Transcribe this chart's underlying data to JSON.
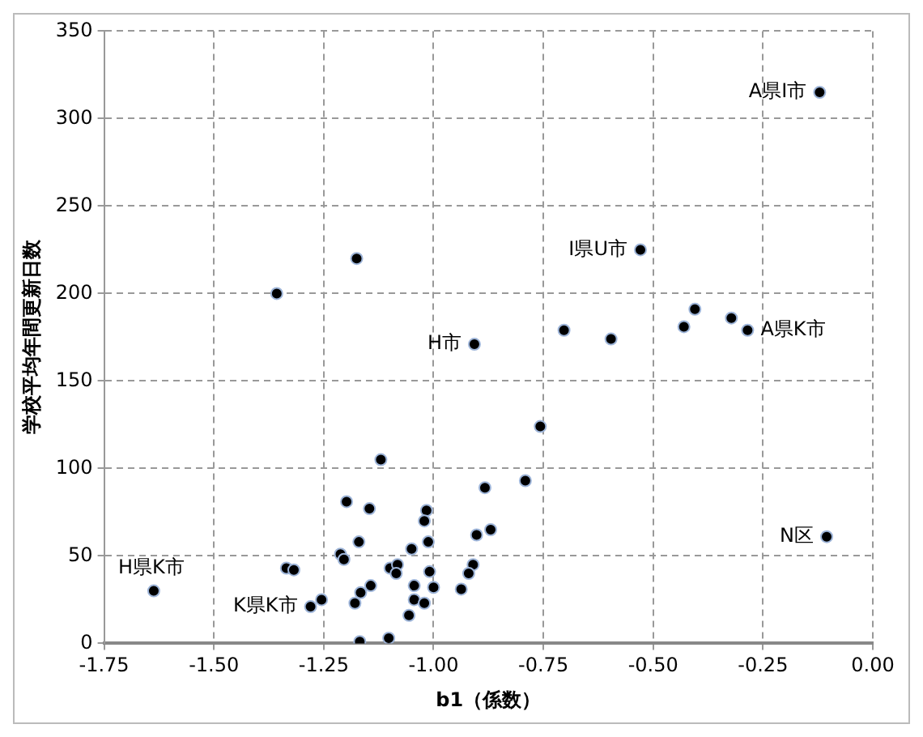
{
  "chart_data": {
    "type": "scatter",
    "xlabel": "b1（係数）",
    "ylabel": "学校平均年間更新日数",
    "x": [
      -1.357,
      -0.907,
      -0.703,
      -0.757,
      -1.12,
      -0.791,
      -0.883,
      -1.198,
      -1.146,
      -1.016,
      -1.021,
      -0.87,
      -0.902,
      -1.17,
      -1.012,
      -1.05,
      -1.212,
      -1.204,
      -0.91,
      -0.92,
      -1.335,
      -1.318,
      -1.099,
      -1.082,
      -1.085,
      -1.009,
      -1.637,
      -1.143,
      -1.166,
      -1.044,
      -1.0,
      -0.937,
      -1.255,
      -1.28,
      -1.179,
      -1.044,
      -1.021,
      -1.056,
      -1.102,
      -1.168,
      -1.175,
      -0.121,
      -0.529,
      -0.596,
      -0.43,
      -0.405,
      -0.322,
      -0.285,
      -0.105
    ],
    "series": [
      {
        "color": "#000000",
        "values": [
          200,
          171,
          179,
          124,
          105,
          93,
          89,
          81,
          77,
          76,
          70,
          65,
          62,
          58,
          58,
          54,
          51,
          48,
          45,
          40,
          43,
          42,
          43,
          45,
          40,
          41,
          30,
          33,
          29,
          33,
          32,
          31,
          25,
          21,
          23,
          25,
          23,
          16,
          3,
          1,
          220,
          315,
          225,
          174,
          181,
          191,
          186,
          179,
          61
        ]
      }
    ],
    "xlim": [
      -1.75,
      0
    ],
    "xticks": [
      {
        "value": -1.75,
        "label": "-1.75"
      },
      {
        "value": -1.5,
        "label": "-1.50"
      },
      {
        "value": -1.25,
        "label": "-1.25"
      },
      {
        "value": -1,
        "label": "-1.00"
      },
      {
        "value": -0.75,
        "label": "-0.75"
      },
      {
        "value": -0.5,
        "label": "-0.50"
      },
      {
        "value": -0.25,
        "label": "-0.25"
      },
      {
        "value": 0,
        "label": "0.00"
      }
    ],
    "ylim": [
      0,
      350
    ],
    "yticks": [
      0,
      50,
      100,
      150,
      200,
      250,
      300,
      350
    ],
    "grid": true,
    "marker": "circle",
    "legend": false,
    "annotations": [
      {
        "text": "A県I市",
        "x": -0.121,
        "y": 315
      },
      {
        "text": "I県U市",
        "x": -0.529,
        "y": 225
      },
      {
        "text": "H市",
        "x": -0.907,
        "y": 171
      },
      {
        "text": "A県K市",
        "x": -0.285,
        "y": 179
      },
      {
        "text": "N区",
        "x": -0.105,
        "y": 61
      },
      {
        "text": "H県K市",
        "x": -1.637,
        "y": 30
      },
      {
        "text": "K県K市",
        "x": -1.28,
        "y": 21
      }
    ]
  }
}
